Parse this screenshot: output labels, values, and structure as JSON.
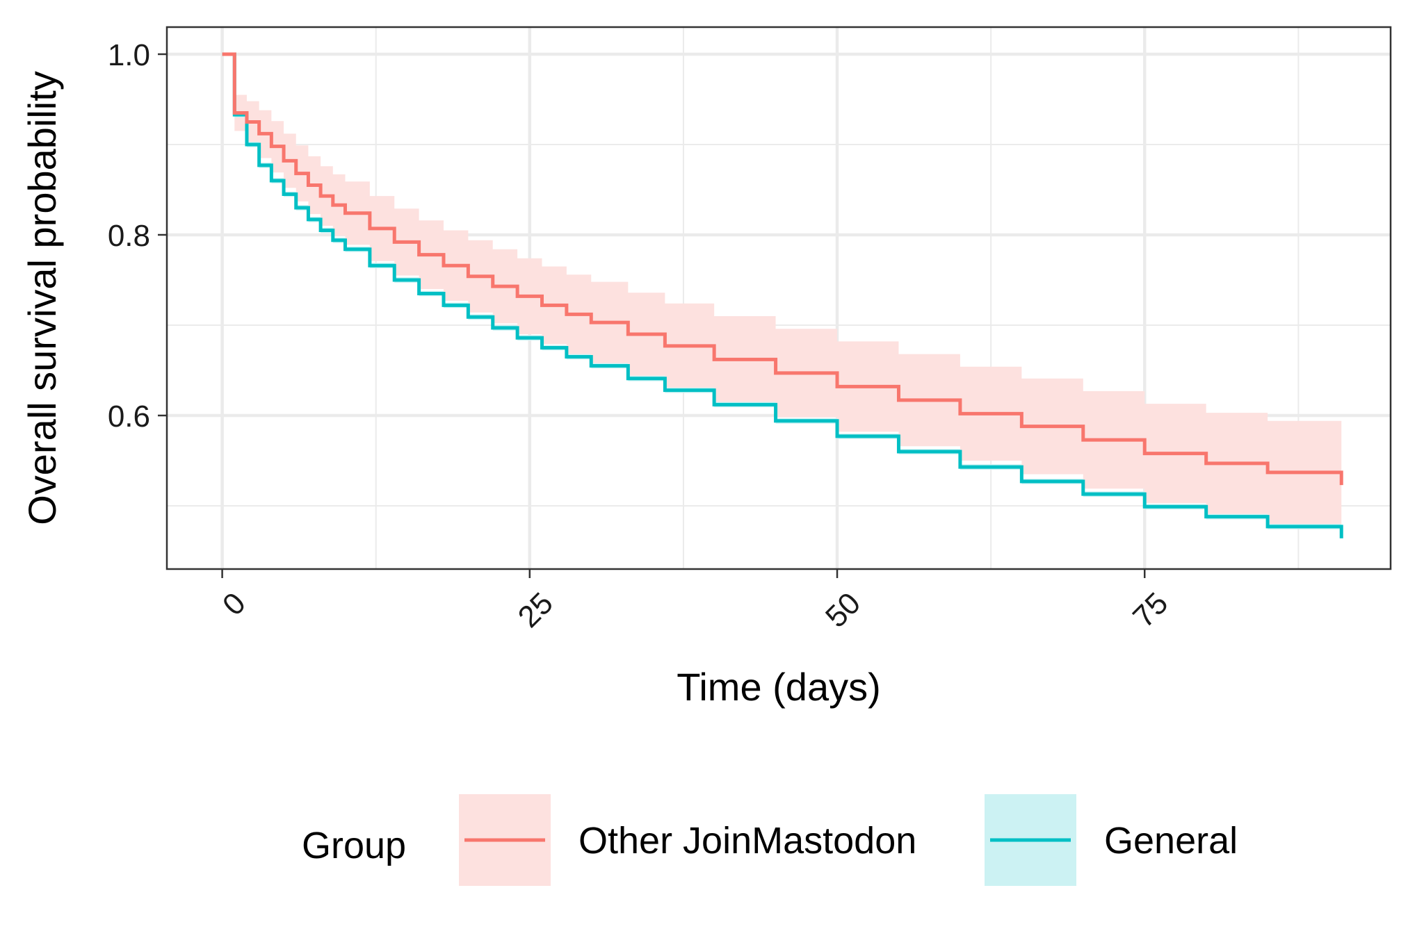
{
  "chart_data": {
    "type": "line",
    "subtype": "step",
    "xlabel": "Time (days)",
    "ylabel": "Overall survival probability",
    "xlim": [
      -4.5,
      95
    ],
    "ylim": [
      0.43,
      1.03
    ],
    "x_ticks": [
      0,
      25,
      50,
      75
    ],
    "x_tick_labels": [
      "0",
      "25",
      "50",
      "75"
    ],
    "x_tick_rotation": -45,
    "x_minor_ticks": [
      12.5,
      37.5,
      62.5,
      87.5
    ],
    "y_ticks": [
      0.6,
      0.8,
      1.0
    ],
    "y_tick_labels": [
      "0.6",
      "0.8",
      "1.0"
    ],
    "y_minor_ticks": [
      0.5,
      0.7,
      0.9
    ],
    "grid": true,
    "legend": {
      "title": "Group",
      "position": "bottom"
    },
    "series": [
      {
        "name": "Other JoinMastodon",
        "color": "#F8766D",
        "band_color": "#FDE1DF",
        "x": [
          0,
          1,
          2,
          3,
          4,
          5,
          6,
          7,
          8,
          9,
          10,
          12,
          14,
          16,
          18,
          20,
          22,
          24,
          26,
          28,
          30,
          33,
          36,
          40,
          45,
          50,
          55,
          60,
          65,
          70,
          75,
          80,
          85,
          91
        ],
        "y": [
          1.0,
          0.935,
          0.925,
          0.912,
          0.898,
          0.882,
          0.868,
          0.855,
          0.843,
          0.833,
          0.824,
          0.807,
          0.792,
          0.778,
          0.766,
          0.754,
          0.743,
          0.732,
          0.722,
          0.712,
          0.703,
          0.69,
          0.677,
          0.662,
          0.647,
          0.632,
          0.617,
          0.602,
          0.588,
          0.573,
          0.558,
          0.547,
          0.537,
          0.523
        ],
        "lower": [
          1.0,
          0.915,
          0.9,
          0.885,
          0.869,
          0.852,
          0.837,
          0.823,
          0.81,
          0.799,
          0.789,
          0.771,
          0.755,
          0.74,
          0.727,
          0.714,
          0.702,
          0.69,
          0.679,
          0.668,
          0.658,
          0.644,
          0.63,
          0.614,
          0.598,
          0.582,
          0.566,
          0.55,
          0.535,
          0.519,
          0.503,
          0.491,
          0.48,
          0.472
        ],
        "upper": [
          1.0,
          0.955,
          0.948,
          0.938,
          0.926,
          0.912,
          0.899,
          0.887,
          0.876,
          0.867,
          0.859,
          0.843,
          0.829,
          0.816,
          0.805,
          0.794,
          0.784,
          0.774,
          0.765,
          0.756,
          0.748,
          0.736,
          0.724,
          0.71,
          0.696,
          0.682,
          0.668,
          0.654,
          0.641,
          0.627,
          0.613,
          0.603,
          0.594,
          0.578
        ]
      },
      {
        "name": "General",
        "color": "#00BFC4",
        "band_color": "#CCF2F3",
        "x": [
          0,
          1,
          2,
          3,
          4,
          5,
          6,
          7,
          8,
          9,
          10,
          12,
          14,
          16,
          18,
          20,
          22,
          24,
          26,
          28,
          30,
          33,
          36,
          40,
          45,
          50,
          55,
          60,
          65,
          70,
          75,
          80,
          85,
          91
        ],
        "y": [
          1.0,
          0.933,
          0.9,
          0.877,
          0.86,
          0.845,
          0.83,
          0.817,
          0.805,
          0.794,
          0.784,
          0.766,
          0.75,
          0.735,
          0.722,
          0.709,
          0.697,
          0.686,
          0.675,
          0.665,
          0.655,
          0.641,
          0.628,
          0.612,
          0.594,
          0.577,
          0.56,
          0.543,
          0.527,
          0.513,
          0.499,
          0.488,
          0.477,
          0.464
        ],
        "lower": [
          1.0,
          0.93,
          0.897,
          0.874,
          0.857,
          0.842,
          0.827,
          0.814,
          0.802,
          0.791,
          0.781,
          0.763,
          0.747,
          0.732,
          0.719,
          0.706,
          0.694,
          0.683,
          0.672,
          0.662,
          0.652,
          0.638,
          0.625,
          0.609,
          0.591,
          0.574,
          0.557,
          0.54,
          0.524,
          0.51,
          0.496,
          0.485,
          0.474,
          0.461
        ],
        "upper": [
          1.0,
          0.936,
          0.903,
          0.88,
          0.863,
          0.848,
          0.833,
          0.82,
          0.808,
          0.797,
          0.787,
          0.769,
          0.753,
          0.738,
          0.725,
          0.712,
          0.7,
          0.689,
          0.678,
          0.668,
          0.658,
          0.644,
          0.631,
          0.615,
          0.597,
          0.58,
          0.563,
          0.546,
          0.53,
          0.516,
          0.502,
          0.491,
          0.48,
          0.467
        ]
      }
    ]
  }
}
